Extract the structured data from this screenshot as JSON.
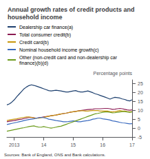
{
  "chart_data": {
    "type": "line",
    "title": "Annual growth rates of credit products and household income",
    "ylabel": "Percentage points",
    "annotations": [
      "Sources: Bank of England, ONS and Bank calculations."
    ],
    "categories": [
      null,
      null,
      null,
      "2013",
      null,
      null,
      null,
      null,
      null,
      null,
      null,
      null,
      null,
      null,
      null,
      "14",
      null,
      null,
      null,
      null,
      null,
      null,
      null,
      null,
      null,
      null,
      null,
      "15",
      null,
      null,
      null,
      null,
      null,
      null,
      null,
      null,
      null,
      null,
      null,
      "16",
      null,
      null,
      null,
      null,
      null,
      null,
      null,
      null,
      null,
      null,
      null,
      "17"
    ],
    "series": [
      {
        "name": "Dealership car finance(a)",
        "color": "#1c3f6e",
        "values": [
          13.0,
          13.5,
          14.5,
          15.8,
          17.5,
          19.0,
          20.5,
          22.0,
          23.0,
          23.8,
          24.2,
          23.9,
          23.5,
          23.0,
          22.5,
          22.0,
          21.5,
          21.0,
          20.8,
          21.0,
          21.2,
          21.0,
          20.8,
          20.5,
          20.2,
          20.2,
          20.5,
          20.8,
          21.0,
          20.5,
          20.2,
          20.2,
          20.5,
          20.8,
          20.3,
          19.8,
          19.2,
          18.8,
          18.3,
          17.8,
          17.3,
          16.8,
          16.2,
          16.8,
          17.2,
          17.0,
          16.8,
          16.3,
          16.0,
          15.5,
          15.2,
          15.8
        ]
      },
      {
        "name": "Total consumer credit(b)",
        "color": "#8b1a52",
        "values": [
          3.5,
          3.8,
          4.0,
          4.2,
          4.5,
          4.8,
          5.0,
          5.3,
          5.6,
          5.9,
          6.0,
          5.8,
          5.5,
          5.8,
          6.0,
          6.2,
          6.4,
          6.6,
          6.9,
          7.1,
          7.3,
          7.6,
          7.9,
          8.1,
          8.3,
          8.6,
          8.9,
          9.1,
          9.3,
          9.6,
          9.8,
          10.0,
          10.2,
          10.4,
          10.5,
          10.6,
          10.8,
          10.8,
          10.8,
          10.9,
          11.0,
          11.0,
          10.8,
          10.5,
          10.6,
          10.8,
          11.0,
          10.8,
          10.5,
          10.2,
          10.0,
          10.2
        ]
      },
      {
        "name": "Credit card(b)",
        "color": "#c8960a",
        "values": [
          4.2,
          4.5,
          4.8,
          5.0,
          5.2,
          5.5,
          5.8,
          6.0,
          6.2,
          6.2,
          6.0,
          5.7,
          5.5,
          5.5,
          5.8,
          6.0,
          6.3,
          6.6,
          6.9,
          7.1,
          7.3,
          7.6,
          7.9,
          8.1,
          8.3,
          8.6,
          8.9,
          9.1,
          9.3,
          9.5,
          9.7,
          9.7,
          9.5,
          9.5,
          9.7,
          9.8,
          9.8,
          9.8,
          9.5,
          9.5,
          9.5,
          9.5,
          9.2,
          9.0,
          9.2,
          9.5,
          9.8,
          9.5,
          9.5,
          9.2,
          9.0,
          9.2
        ]
      },
      {
        "name": "Nominal household income growth(c)",
        "color": "#3a6abf",
        "values": [
          2.0,
          2.3,
          2.6,
          2.9,
          3.2,
          3.5,
          3.8,
          4.2,
          4.5,
          4.8,
          5.0,
          5.2,
          5.5,
          5.8,
          6.0,
          5.8,
          5.5,
          5.0,
          4.8,
          4.5,
          4.2,
          4.0,
          3.8,
          3.5,
          3.5,
          3.6,
          3.8,
          4.0,
          3.8,
          3.5,
          3.5,
          3.8,
          4.0,
          4.2,
          4.5,
          5.0,
          5.2,
          5.5,
          5.5,
          5.2,
          5.0,
          4.8,
          4.5,
          4.0,
          3.8,
          3.5,
          3.2,
          2.9,
          2.8,
          2.6,
          2.4,
          2.5
        ]
      },
      {
        "name": "Other (non-credit card and non-dealership car finance)(b)(d)",
        "color": "#6a9a1a",
        "values": [
          -1.8,
          -1.5,
          -1.2,
          -0.9,
          -0.6,
          -0.3,
          0.0,
          0.2,
          0.5,
          0.8,
          1.0,
          1.2,
          0.8,
          0.5,
          0.5,
          0.8,
          0.5,
          0.2,
          0.0,
          0.2,
          0.5,
          0.8,
          1.0,
          1.5,
          2.0,
          2.5,
          3.0,
          3.5,
          4.0,
          4.5,
          5.0,
          5.5,
          6.0,
          6.5,
          7.0,
          7.5,
          8.0,
          8.2,
          8.5,
          8.8,
          9.0,
          9.0,
          8.8,
          8.5,
          8.6,
          8.8,
          9.0,
          9.2,
          9.2,
          9.0,
          8.8,
          9.0
        ]
      }
    ],
    "ylim": [
      -5,
      27
    ],
    "yticks": [
      -5,
      0,
      5,
      10,
      15,
      20,
      25
    ],
    "grid": false,
    "legend": "top"
  }
}
